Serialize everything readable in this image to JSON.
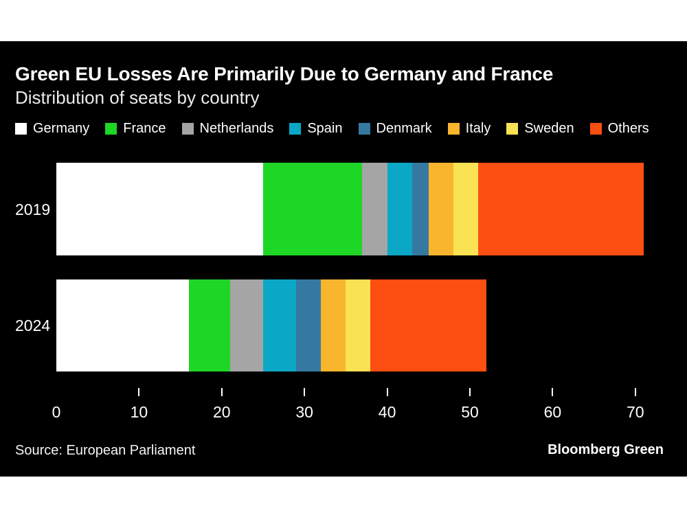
{
  "chart_data": {
    "type": "bar",
    "orientation": "horizontal",
    "stacked": true,
    "title": "Green EU Losses Are Primarily Due to Germany and France",
    "subtitle": "Distribution of seats by country",
    "categories": [
      "2019",
      "2024"
    ],
    "series": [
      {
        "name": "Germany",
        "color": "#ffffff",
        "values": [
          25,
          16
        ]
      },
      {
        "name": "France",
        "color": "#1ed626",
        "values": [
          12,
          5
        ]
      },
      {
        "name": "Netherlands",
        "color": "#a5a5a5",
        "values": [
          3,
          4
        ]
      },
      {
        "name": "Spain",
        "color": "#0aa8c6",
        "values": [
          3,
          4
        ]
      },
      {
        "name": "Denmark",
        "color": "#3579a1",
        "values": [
          2,
          3
        ]
      },
      {
        "name": "Italy",
        "color": "#f8b52d",
        "values": [
          3,
          3
        ]
      },
      {
        "name": "Sweden",
        "color": "#f9e254",
        "values": [
          3,
          3
        ]
      },
      {
        "name": "Others",
        "color": "#fc4f11",
        "values": [
          20,
          14
        ]
      }
    ],
    "totals": [
      71,
      52
    ],
    "x_ticks": [
      0,
      10,
      20,
      30,
      40,
      50,
      60,
      70
    ],
    "xlim": [
      0,
      75
    ],
    "legend_position": "top",
    "grid": false,
    "background": "#000000",
    "text_color": "#ffffff"
  },
  "footer": {
    "source": "Source: European Parliament",
    "brand": "Bloomberg Green"
  }
}
